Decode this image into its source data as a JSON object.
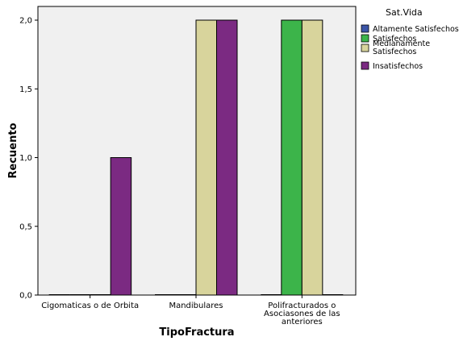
{
  "chart_data": {
    "type": "bar",
    "xlabel": "TipoFractura",
    "ylabel": "Recuento",
    "ylim": [
      0,
      2.1
    ],
    "yticks": [
      "0,0",
      "0,5",
      "1,0",
      "1,5",
      "2,0"
    ],
    "ytick_values": [
      0,
      0.5,
      1.0,
      1.5,
      2.0
    ],
    "grid": false,
    "legend": {
      "title": "Sat.Vida",
      "placement": "right"
    },
    "categories": [
      {
        "lines": [
          "Cigomaticas o de Orbita"
        ]
      },
      {
        "lines": [
          "Mandibulares"
        ]
      },
      {
        "lines": [
          "Polifracturados o",
          "Asociasones de las",
          "anteriores"
        ]
      }
    ],
    "series": [
      {
        "name_lines": [
          "Altamente Satisfechos"
        ],
        "color": "#3c55a8",
        "values": [
          0,
          0,
          0
        ]
      },
      {
        "name_lines": [
          "Satisfechos"
        ],
        "color": "#3cb44a",
        "values": [
          0,
          0,
          2
        ]
      },
      {
        "name_lines": [
          "Medianamente",
          "Satisfechos"
        ],
        "color": "#d8d49c",
        "values": [
          0,
          2,
          2
        ]
      },
      {
        "name_lines": [
          "Insatisfechos"
        ],
        "color": "#7b2a82",
        "values": [
          1,
          2,
          0
        ]
      }
    ]
  }
}
